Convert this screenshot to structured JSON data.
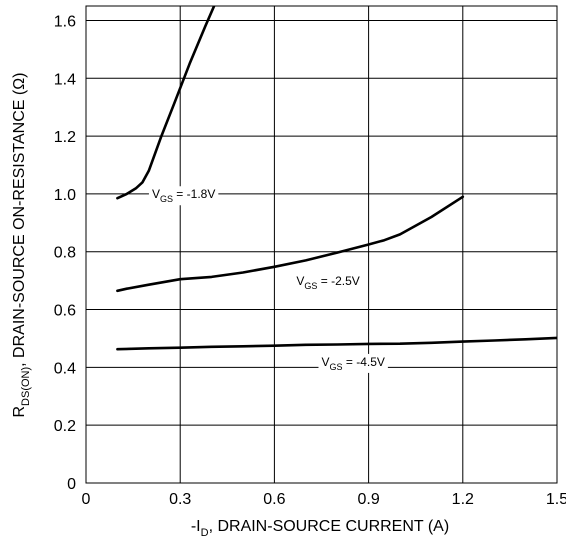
{
  "chart_data": {
    "type": "line",
    "title": "",
    "xlabel": {
      "prefix": "-I",
      "sub": "D",
      "rest": ", DRAIN-SOURCE CURRENT (A)"
    },
    "ylabel": {
      "prefix": "R",
      "sub": "DS(ON)",
      "rest": ", DRAIN-SOURCE ON-RESISTANCE (Ω)"
    },
    "xlim": [
      0,
      1.5
    ],
    "ylim": [
      0,
      1.65
    ],
    "x_ticks": [
      0,
      0.3,
      0.6,
      0.9,
      1.2,
      1.5
    ],
    "x_tick_labels": [
      "0",
      "0.3",
      "0.6",
      "0.9",
      "1.2",
      "1.5"
    ],
    "y_ticks": [
      0,
      0.2,
      0.4,
      0.6,
      0.8,
      1.0,
      1.2,
      1.4,
      1.6
    ],
    "y_tick_labels": [
      "0",
      "0.2",
      "0.4",
      "0.6",
      "0.8",
      "1.0",
      "1.2",
      "1.4",
      "1.6"
    ],
    "grid": true,
    "line_color": "#000000",
    "grid_color": "#000000",
    "series": [
      {
        "label": {
          "prefix": "V",
          "sub": "GS",
          "rest": " = -1.8V"
        },
        "x": [
          0.1,
          0.13,
          0.16,
          0.18,
          0.2,
          0.24,
          0.28,
          0.33,
          0.38,
          0.42
        ],
        "y": [
          0.985,
          1.0,
          1.02,
          1.04,
          1.08,
          1.2,
          1.31,
          1.45,
          1.58,
          1.68
        ]
      },
      {
        "label": {
          "prefix": "V",
          "sub": "GS",
          "rest": " = -2.5V"
        },
        "x": [
          0.1,
          0.13,
          0.2,
          0.3,
          0.4,
          0.5,
          0.6,
          0.7,
          0.8,
          0.9,
          0.95,
          1.0,
          1.1,
          1.2
        ],
        "y": [
          0.665,
          0.672,
          0.686,
          0.705,
          0.713,
          0.728,
          0.748,
          0.77,
          0.797,
          0.825,
          0.84,
          0.86,
          0.92,
          0.99
        ]
      },
      {
        "label": {
          "prefix": "V",
          "sub": "GS",
          "rest": " = -4.5V"
        },
        "x": [
          0.1,
          0.2,
          0.3,
          0.4,
          0.5,
          0.6,
          0.7,
          0.8,
          0.9,
          1.0,
          1.1,
          1.2,
          1.3,
          1.4,
          1.5
        ],
        "y": [
          0.463,
          0.466,
          0.468,
          0.471,
          0.473,
          0.475,
          0.478,
          0.479,
          0.481,
          0.482,
          0.485,
          0.489,
          0.493,
          0.497,
          0.502
        ]
      }
    ]
  }
}
